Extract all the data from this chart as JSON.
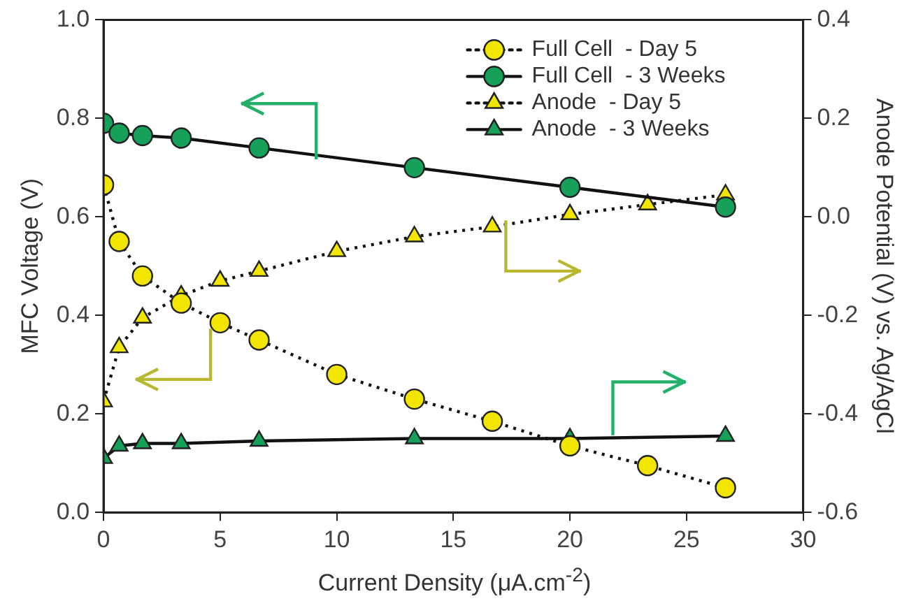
{
  "chart_data": {
    "type": "line",
    "xlabel": "Current Density (μA.cm$^{-2}$)",
    "ylabel": "MFC Voltage (V)",
    "y2label": "Anode Potential (V) vs. Ag/AgCl",
    "xlim": [
      0,
      30
    ],
    "xticks": [
      0,
      5,
      10,
      15,
      20,
      25,
      30
    ],
    "ylim": [
      0,
      1
    ],
    "yticks": [
      {
        "value": 0,
        "label": "0.0"
      },
      {
        "value": 0.2,
        "label": "0.2"
      },
      {
        "value": 0.4,
        "label": "0.4"
      },
      {
        "value": 0.6,
        "label": "0.6"
      },
      {
        "value": 0.8,
        "label": "0.8"
      },
      {
        "value": 1,
        "label": "1.0"
      }
    ],
    "y2lim": [
      -0.6,
      0.4
    ],
    "y2ticks": [
      -0.6,
      -0.4,
      -0.2,
      {
        "value": 0,
        "label": "0.0"
      },
      0.2,
      0.4
    ],
    "grid": false,
    "legend": "top right",
    "series": [
      {
        "name": "Full Cell  - Day 5",
        "color": "#f2e600",
        "marker": "circle",
        "line_style": "dotted",
        "x": [
          0,
          0.67,
          1.67,
          3.33,
          5,
          6.67,
          10,
          13.33,
          16.67,
          20,
          23.33,
          26.67
        ],
        "values": [
          0.665,
          0.55,
          0.48,
          0.425,
          0.385,
          0.35,
          0.28,
          0.23,
          0.185,
          0.135,
          0.095,
          0.05
        ]
      },
      {
        "name": "Full Cell  - 3 Weeks",
        "color": "#16a05a",
        "marker": "circle",
        "line_style": "solid",
        "x": [
          0,
          0.67,
          1.67,
          3.33,
          6.67,
          13.33,
          20,
          26.67
        ],
        "values": [
          0.79,
          0.77,
          0.765,
          0.76,
          0.74,
          0.7,
          0.66,
          0.62
        ]
      },
      {
        "name": "Anode  - Day 5",
        "color": "#f2e600",
        "marker": "triangle",
        "line_style": "dotted",
        "axis": "y2",
        "x": [
          0,
          0.67,
          1.67,
          3.33,
          5,
          6.67,
          10,
          13.33,
          16.67,
          20,
          23.33,
          26.67
        ],
        "values": [
          -0.375,
          -0.265,
          -0.205,
          -0.16,
          -0.13,
          -0.11,
          -0.07,
          -0.04,
          -0.02,
          0.005,
          0.025,
          0.045
        ]
      },
      {
        "name": "Anode  - 3 Weeks",
        "color": "#16a05a",
        "marker": "triangle",
        "line_style": "solid",
        "axis": "y2",
        "x": [
          0,
          0.67,
          1.67,
          3.33,
          6.67,
          13.33,
          20,
          26.67
        ],
        "values": [
          -0.49,
          -0.465,
          -0.46,
          -0.46,
          -0.455,
          -0.45,
          -0.45,
          -0.445
        ]
      }
    ]
  }
}
